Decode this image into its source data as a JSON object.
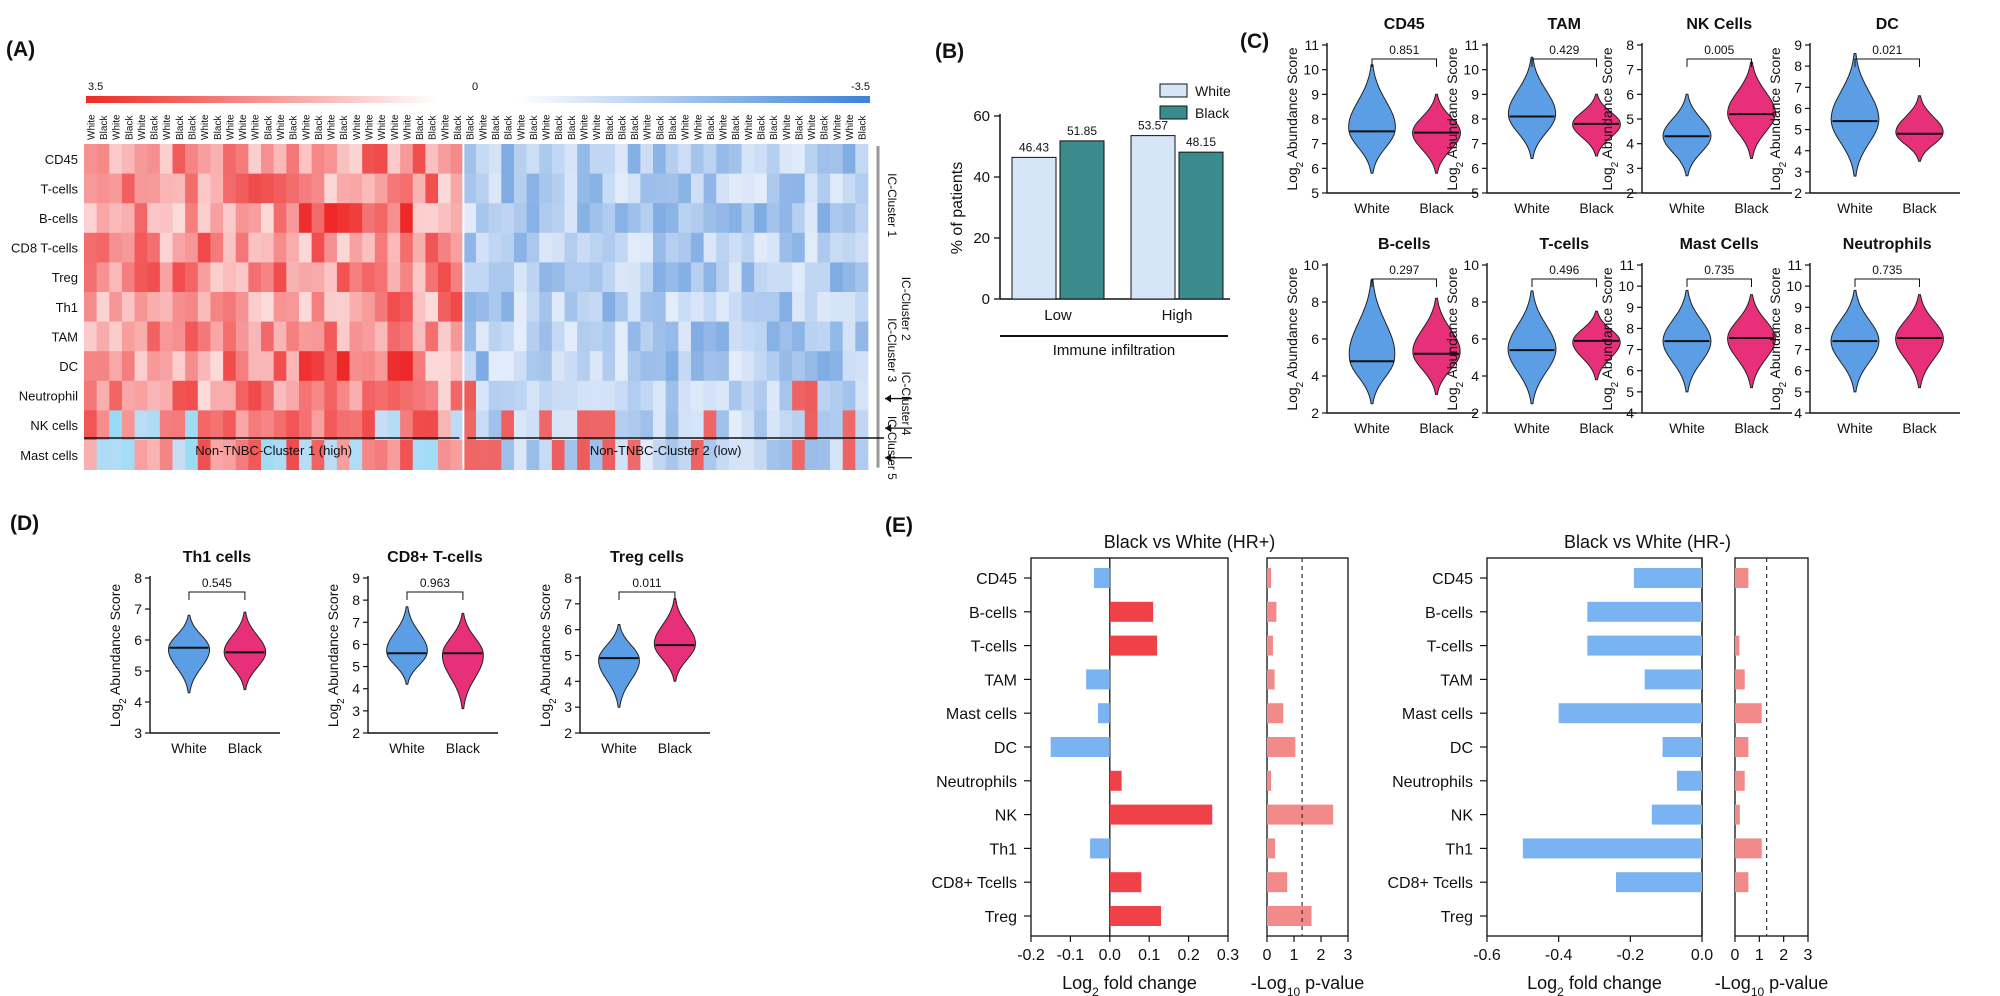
{
  "panels": {
    "A": "(A)",
    "B": "(B)",
    "C": "(C)",
    "D": "(D)",
    "E": "(E)"
  },
  "colors": {
    "white_group": "#5b9ee6",
    "black_group": "#e8307a",
    "bar_white": "#d6e6f8",
    "bar_black": "#3a8a8e",
    "fc_pos": "#f04048",
    "fc_neg": "#79b3f2",
    "pval": "#f28a8a",
    "heat_pos": "#ee2a24",
    "heat_neg": "#3b82d9"
  },
  "chart_data": [
    {
      "id": "A",
      "type": "heatmap",
      "scale_labels": [
        "3.5",
        "0",
        "-3.5"
      ],
      "col_groups": [
        "White",
        "Black",
        "White",
        "Black",
        "White",
        "Black",
        "White",
        "Black",
        "Black",
        "White",
        "Black",
        "White",
        "White",
        "White",
        "Black",
        "White",
        "Black",
        "White",
        "Black",
        "White",
        "Black",
        "White",
        "White",
        "White",
        "White",
        "White",
        "Black",
        "Black",
        "White",
        "Black",
        "Black",
        "White",
        "Black",
        "Black",
        "White",
        "Black",
        "White",
        "Black",
        "Black",
        "White",
        "White",
        "Black",
        "Black",
        "Black",
        "White",
        "Black",
        "Black",
        "White",
        "White",
        "Black",
        "White",
        "Black",
        "White",
        "Black",
        "Black",
        "White",
        "Black",
        "White",
        "Black",
        "White",
        "White",
        "Black"
      ],
      "rows": [
        "CD45",
        "T-cells",
        "B-cells",
        "CD8 T-cells",
        "Treg",
        "Th1",
        "TAM",
        "DC",
        "Neutrophil",
        "NK cells",
        "Mast cells"
      ],
      "clusters": [
        "IC-Cluster 1",
        "IC-Cluster 2",
        "IC-Cluster 3",
        "IC-Cluster 4",
        "IC-Cluster 5"
      ],
      "bottom_labels": [
        "Non-TNBC-Cluster 1 (high)",
        "Non-TNBC-Cluster 2 (low)"
      ],
      "n_high_cols": 30
    },
    {
      "id": "B",
      "type": "bar",
      "categories": [
        "Low",
        "High"
      ],
      "series": [
        {
          "name": "White",
          "values": [
            46.43,
            53.57
          ]
        },
        {
          "name": "Black",
          "values": [
            51.85,
            48.15
          ]
        }
      ],
      "labels": [
        [
          "46.43",
          "51.85"
        ],
        [
          "53.57",
          "48.15"
        ]
      ],
      "ylabel": "% of patients",
      "xlabel": "Immune infiltration",
      "ylim": [
        0,
        60
      ],
      "yticks": [
        "0",
        "20",
        "40",
        "60"
      ]
    },
    {
      "id": "C",
      "type": "violin",
      "ylabel": "Log2 Abundance Score",
      "groups": [
        "White",
        "Black"
      ],
      "plots": [
        {
          "title": "CD45",
          "p": "0.851",
          "ylim": [
            5,
            11
          ],
          "yticks": [
            "5",
            "6",
            "7",
            "8",
            "9",
            "10",
            "11"
          ],
          "white": {
            "median": 7.5,
            "lo": 5.8,
            "hi": 10.2
          },
          "black": {
            "median": 7.45,
            "lo": 5.8,
            "hi": 9.0
          }
        },
        {
          "title": "TAM",
          "p": "0.429",
          "ylim": [
            5,
            11
          ],
          "yticks": [
            "5",
            "6",
            "7",
            "8",
            "9",
            "10",
            "11"
          ],
          "white": {
            "median": 8.1,
            "lo": 6.4,
            "hi": 10.5
          },
          "black": {
            "median": 7.8,
            "lo": 6.5,
            "hi": 9.0
          }
        },
        {
          "title": "NK Cells",
          "p": "0.005",
          "ylim": [
            2,
            8
          ],
          "yticks": [
            "2",
            "3",
            "4",
            "5",
            "6",
            "7",
            "8"
          ],
          "white": {
            "median": 4.3,
            "lo": 2.7,
            "hi": 6.0
          },
          "black": {
            "median": 5.2,
            "lo": 3.4,
            "hi": 7.3
          }
        },
        {
          "title": "DC",
          "p": "0.021",
          "ylim": [
            2,
            9
          ],
          "yticks": [
            "2",
            "3",
            "4",
            "5",
            "6",
            "7",
            "8",
            "9"
          ],
          "white": {
            "median": 5.4,
            "lo": 2.8,
            "hi": 8.6
          },
          "black": {
            "median": 4.8,
            "lo": 3.5,
            "hi": 6.6
          }
        },
        {
          "title": "B-cells",
          "p": "0.297",
          "ylim": [
            2,
            10
          ],
          "yticks": [
            "2",
            "4",
            "6",
            "8",
            "10"
          ],
          "white": {
            "median": 4.8,
            "lo": 2.5,
            "hi": 9.2
          },
          "black": {
            "median": 5.2,
            "lo": 3.0,
            "hi": 8.2
          }
        },
        {
          "title": "T-cells",
          "p": "0.496",
          "ylim": [
            2,
            10
          ],
          "yticks": [
            "2",
            "4",
            "6",
            "8",
            "10"
          ],
          "white": {
            "median": 5.4,
            "lo": 2.5,
            "hi": 8.6
          },
          "black": {
            "median": 5.9,
            "lo": 3.8,
            "hi": 7.5
          }
        },
        {
          "title": "Mast Cells",
          "p": "0.735",
          "ylim": [
            4,
            11
          ],
          "yticks": [
            "4",
            "5",
            "6",
            "7",
            "8",
            "9",
            "10",
            "11"
          ],
          "white": {
            "median": 7.4,
            "lo": 5.0,
            "hi": 9.8
          },
          "black": {
            "median": 7.55,
            "lo": 5.2,
            "hi": 9.6
          }
        },
        {
          "title": "Neutrophils",
          "p": "0.735",
          "ylim": [
            4,
            11
          ],
          "yticks": [
            "4",
            "5",
            "6",
            "7",
            "8",
            "9",
            "10",
            "11"
          ],
          "white": {
            "median": 7.4,
            "lo": 5.0,
            "hi": 9.8
          },
          "black": {
            "median": 7.55,
            "lo": 5.2,
            "hi": 9.6
          }
        }
      ]
    },
    {
      "id": "D",
      "type": "violin",
      "ylabel": "Log2 Abundance Score",
      "groups": [
        "White",
        "Black"
      ],
      "plots": [
        {
          "title": "Th1 cells",
          "p": "0.545",
          "ylim": [
            3,
            8
          ],
          "yticks": [
            "3",
            "4",
            "5",
            "6",
            "7",
            "8"
          ],
          "white": {
            "median": 5.75,
            "lo": 4.3,
            "hi": 6.8
          },
          "black": {
            "median": 5.6,
            "lo": 4.4,
            "hi": 6.9
          }
        },
        {
          "title": "CD8+ T-cells",
          "p": "0.963",
          "ylim": [
            2,
            9
          ],
          "yticks": [
            "2",
            "3",
            "4",
            "5",
            "6",
            "7",
            "8",
            "9"
          ],
          "white": {
            "median": 5.6,
            "lo": 4.2,
            "hi": 7.7
          },
          "black": {
            "median": 5.6,
            "lo": 3.1,
            "hi": 7.4
          }
        },
        {
          "title": "Treg cells",
          "p": "0.011",
          "ylim": [
            2,
            8
          ],
          "yticks": [
            "2",
            "3",
            "4",
            "5",
            "6",
            "7",
            "8"
          ],
          "white": {
            "median": 4.9,
            "lo": 3.0,
            "hi": 6.2
          },
          "black": {
            "median": 5.4,
            "lo": 4.0,
            "hi": 7.2
          }
        }
      ]
    },
    {
      "id": "E",
      "type": "bar",
      "orientation": "horizontal",
      "categories": [
        "CD45",
        "B-cells",
        "T-cells",
        "TAM",
        "Mast cells",
        "DC",
        "Neutrophils",
        "NK",
        "Th1",
        "CD8+ Tcells",
        "Treg"
      ],
      "panels": [
        {
          "title": "Black vs White (HR+)",
          "xlabel": "Log2 fold change",
          "xlim": [
            -0.2,
            0.3
          ],
          "xticks": [
            "-0.2",
            "-0.1",
            "0.0",
            "0.1",
            "0.2",
            "0.3"
          ],
          "fold_change": [
            -0.04,
            0.11,
            0.12,
            -0.06,
            -0.03,
            -0.15,
            0.03,
            0.26,
            -0.05,
            0.08,
            0.13
          ],
          "p_xlabel": "-Log10 p-value",
          "p_xlim": [
            0,
            3
          ],
          "p_xticks": [
            "0",
            "1",
            "2",
            "3"
          ],
          "neg_log10_p": [
            0.15,
            0.35,
            0.22,
            0.28,
            0.6,
            1.05,
            0.15,
            2.45,
            0.3,
            0.75,
            1.65
          ],
          "threshold": 1.3
        },
        {
          "title": "Black vs  White (HR-)",
          "xlabel": "Log2 fold change",
          "xlim": [
            -0.6,
            0.0
          ],
          "xticks": [
            "-0.6",
            "-0.4",
            "-0.2",
            "0.0"
          ],
          "fold_change": [
            -0.19,
            -0.32,
            -0.32,
            -0.16,
            -0.4,
            -0.11,
            -0.07,
            -0.14,
            -0.5,
            -0.24,
            null
          ],
          "p_xlabel": "-Log10 p-value",
          "p_xlim": [
            0,
            3
          ],
          "p_xticks": [
            "0",
            "1",
            "2",
            "3"
          ],
          "neg_log10_p": [
            0.55,
            0.0,
            0.18,
            0.4,
            1.1,
            0.55,
            0.4,
            0.2,
            1.1,
            0.55,
            null
          ],
          "threshold": 1.3
        }
      ]
    }
  ]
}
